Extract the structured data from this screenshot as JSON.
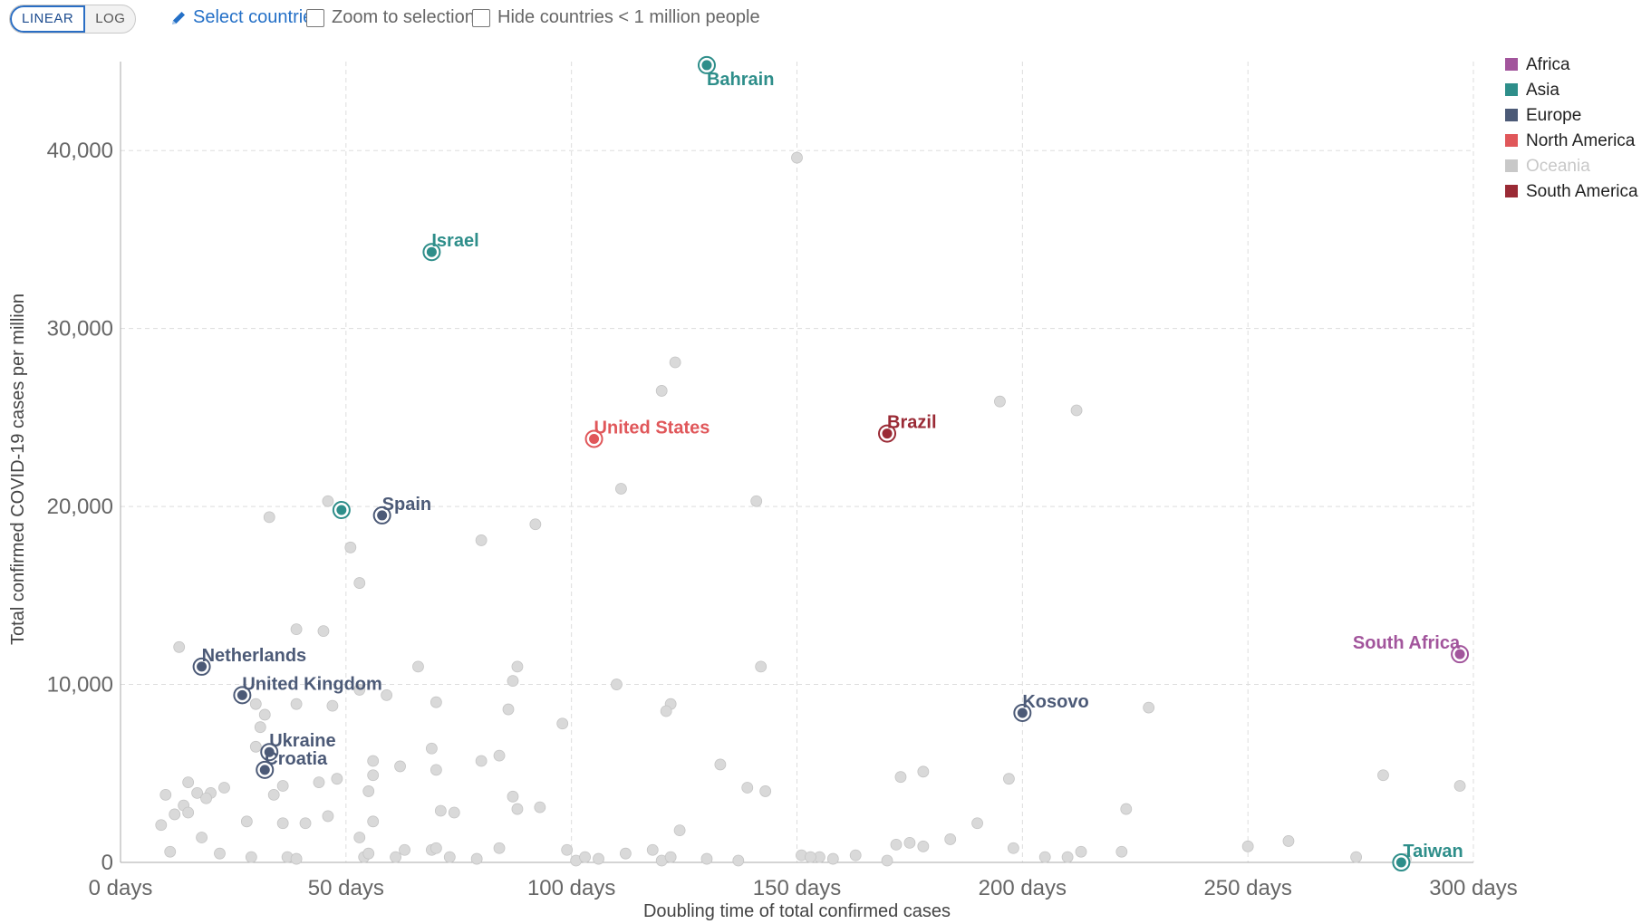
{
  "controls": {
    "scale_linear": "LINEAR",
    "scale_log": "LOG",
    "scale_selected": "LINEAR",
    "select_countries": "Select countries",
    "zoom_to_selection": "Zoom to selection",
    "hide_small": "Hide countries < 1 million people",
    "pencil_icon": "pencil-icon",
    "zoom_checked": false,
    "hide_checked": false
  },
  "colors": {
    "Africa": "#a2559c",
    "Asia": "#2e8e8a",
    "Europe": "#4c5a77",
    "North America": "#e0575a",
    "Oceania": "#c8c8c8",
    "South America": "#9a2a35",
    "background": "#d9d9d9",
    "grid": "#dddddd",
    "control_accent": "#2470c7"
  },
  "chart_data": {
    "type": "scatter",
    "xlabel": "Doubling time of total confirmed cases",
    "ylabel": "Total confirmed COVID-19 cases per million",
    "xlim": [
      0,
      300
    ],
    "ylim": [
      0,
      45000
    ],
    "x_ticks": [
      0,
      50,
      100,
      150,
      200,
      250,
      300
    ],
    "x_tick_labels": [
      "0 days",
      "50 days",
      "100 days",
      "150 days",
      "200 days",
      "250 days",
      "300 days"
    ],
    "y_ticks": [
      0,
      10000,
      20000,
      30000,
      40000
    ],
    "y_tick_labels": [
      "0",
      "10,000",
      "20,000",
      "30,000",
      "40,000"
    ],
    "grid": true,
    "legend_position": "right",
    "legend": [
      {
        "name": "Africa",
        "color": "#a2559c",
        "muted": false
      },
      {
        "name": "Asia",
        "color": "#2e8e8a",
        "muted": false
      },
      {
        "name": "Europe",
        "color": "#4c5a77",
        "muted": false
      },
      {
        "name": "North America",
        "color": "#e0575a",
        "muted": false
      },
      {
        "name": "Oceania",
        "color": "#c8c8c8",
        "muted": true
      },
      {
        "name": "South America",
        "color": "#9a2a35",
        "muted": false
      }
    ],
    "highlighted": [
      {
        "name": "Bahrain",
        "continent": "Asia",
        "x": 130,
        "y": 44800
      },
      {
        "name": "Israel",
        "continent": "Asia",
        "x": 69,
        "y": 34300
      },
      {
        "name": "United States",
        "continent": "North America",
        "x": 105,
        "y": 23800
      },
      {
        "name": "Brazil",
        "continent": "South America",
        "x": 170,
        "y": 24100
      },
      {
        "name": "Spain",
        "continent": "Europe",
        "x": 58,
        "y": 19500
      },
      {
        "name": "Netherlands",
        "continent": "Europe",
        "x": 18,
        "y": 11000
      },
      {
        "name": "United Kingdom",
        "continent": "Europe",
        "x": 27,
        "y": 9400
      },
      {
        "name": "Ukraine",
        "continent": "Europe",
        "x": 33,
        "y": 6200
      },
      {
        "name": "Croatia",
        "continent": "Europe",
        "x": 32,
        "y": 5200
      },
      {
        "name": "Kosovo",
        "continent": "Europe",
        "x": 200,
        "y": 8400
      },
      {
        "name": "South Africa",
        "continent": "Africa",
        "x": 297,
        "y": 11700
      },
      {
        "name": "Taiwan",
        "continent": "Asia",
        "x": 284,
        "y": 0
      }
    ],
    "highlighted_unlabeled": [
      {
        "continent": "Asia",
        "x": 49,
        "y": 19800
      }
    ],
    "background_points": [
      [
        150,
        39600
      ],
      [
        123,
        28100
      ],
      [
        120,
        26500
      ],
      [
        195,
        25900
      ],
      [
        212,
        25400
      ],
      [
        111,
        21000
      ],
      [
        141,
        20300
      ],
      [
        46,
        20300
      ],
      [
        33,
        19400
      ],
      [
        92,
        19000
      ],
      [
        80,
        18100
      ],
      [
        51,
        17700
      ],
      [
        53,
        15700
      ],
      [
        39,
        13100
      ],
      [
        45,
        13000
      ],
      [
        13,
        12100
      ],
      [
        88,
        11000
      ],
      [
        66,
        11000
      ],
      [
        142,
        11000
      ],
      [
        110,
        10000
      ],
      [
        87,
        10200
      ],
      [
        53,
        9700
      ],
      [
        59,
        9400
      ],
      [
        70,
        9000
      ],
      [
        122,
        8900
      ],
      [
        30,
        8900
      ],
      [
        39,
        8900
      ],
      [
        47,
        8800
      ],
      [
        121,
        8500
      ],
      [
        86,
        8600
      ],
      [
        32,
        8300
      ],
      [
        98,
        7800
      ],
      [
        31,
        7600
      ],
      [
        30,
        6500
      ],
      [
        69,
        6400
      ],
      [
        84,
        6000
      ],
      [
        56,
        5700
      ],
      [
        80,
        5700
      ],
      [
        62,
        5400
      ],
      [
        70,
        5200
      ],
      [
        133,
        5500
      ],
      [
        178,
        5100
      ],
      [
        173,
        4800
      ],
      [
        197,
        4700
      ],
      [
        56,
        4900
      ],
      [
        48,
        4700
      ],
      [
        44,
        4500
      ],
      [
        36,
        4300
      ],
      [
        23,
        4200
      ],
      [
        15,
        4500
      ],
      [
        20,
        3900
      ],
      [
        10,
        3800
      ],
      [
        17,
        3900
      ],
      [
        19,
        3600
      ],
      [
        34,
        3800
      ],
      [
        55,
        4000
      ],
      [
        87,
        3700
      ],
      [
        139,
        4200
      ],
      [
        143,
        4000
      ],
      [
        14,
        3200
      ],
      [
        15,
        2800
      ],
      [
        12,
        2700
      ],
      [
        88,
        3000
      ],
      [
        93,
        3100
      ],
      [
        71,
        2900
      ],
      [
        74,
        2800
      ],
      [
        223,
        3000
      ],
      [
        9,
        2100
      ],
      [
        28,
        2300
      ],
      [
        36,
        2200
      ],
      [
        41,
        2200
      ],
      [
        46,
        2600
      ],
      [
        56,
        2300
      ],
      [
        124,
        1800
      ],
      [
        190,
        2200
      ],
      [
        18,
        1400
      ],
      [
        53,
        1400
      ],
      [
        11,
        600
      ],
      [
        22,
        500
      ],
      [
        29,
        300
      ],
      [
        37,
        300
      ],
      [
        39,
        200
      ],
      [
        54,
        300
      ],
      [
        55,
        500
      ],
      [
        61,
        300
      ],
      [
        69,
        700
      ],
      [
        70,
        800
      ],
      [
        73,
        300
      ],
      [
        84,
        800
      ],
      [
        99,
        700
      ],
      [
        101,
        100
      ],
      [
        103,
        300
      ],
      [
        106,
        200
      ],
      [
        112,
        500
      ],
      [
        118,
        700
      ],
      [
        120,
        100
      ],
      [
        122,
        300
      ],
      [
        137,
        100
      ],
      [
        151,
        400
      ],
      [
        155,
        300
      ],
      [
        158,
        200
      ],
      [
        163,
        400
      ],
      [
        170,
        100
      ],
      [
        172,
        1000
      ],
      [
        175,
        1100
      ],
      [
        178,
        900
      ],
      [
        184,
        1300
      ],
      [
        198,
        800
      ],
      [
        205,
        300
      ],
      [
        210,
        300
      ],
      [
        213,
        600
      ],
      [
        222,
        600
      ],
      [
        228,
        8700
      ],
      [
        250,
        900
      ],
      [
        259,
        1200
      ],
      [
        274,
        300
      ],
      [
        285,
        200
      ],
      [
        280,
        4900
      ],
      [
        297,
        4300
      ],
      [
        153,
        300
      ],
      [
        130,
        200
      ],
      [
        63,
        700
      ],
      [
        79,
        200
      ]
    ]
  }
}
